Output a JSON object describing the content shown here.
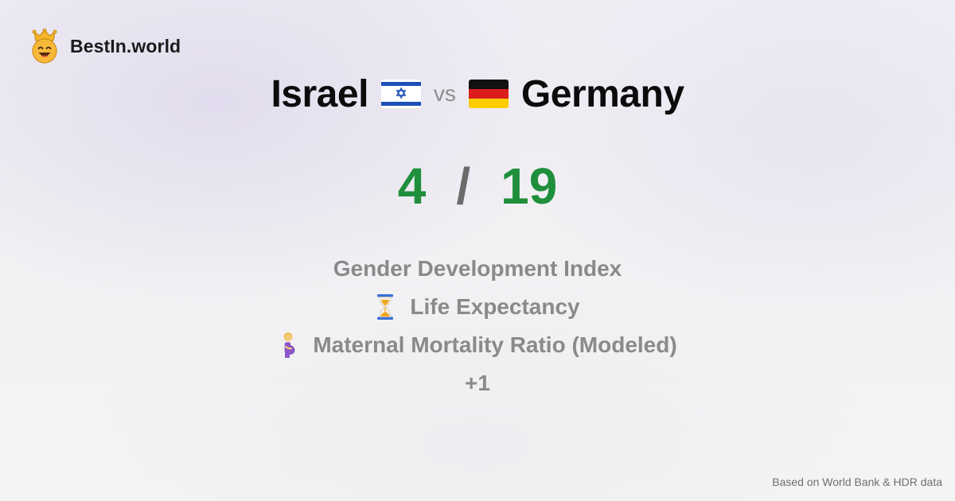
{
  "brand": {
    "name": "BestIn.world",
    "logo_icon": "crown-smiley-icon"
  },
  "comparison": {
    "country_a": "Israel",
    "country_a_flag": "israel-flag-icon",
    "vs_label": "vs",
    "country_b": "Germany",
    "country_b_flag": "germany-flag-icon"
  },
  "score": {
    "a": "4",
    "separator": "/",
    "b": "19",
    "color": "#1f8f3c"
  },
  "metrics": [
    {
      "label": "Gender Development Index",
      "icon": ""
    },
    {
      "label": "Life Expectancy",
      "icon": "hourglass-icon"
    },
    {
      "label": "Maternal Mortality Ratio (Modeled)",
      "icon": "pregnant-woman-icon"
    }
  ],
  "more": "+1",
  "footer": "Based on World Bank & HDR data"
}
